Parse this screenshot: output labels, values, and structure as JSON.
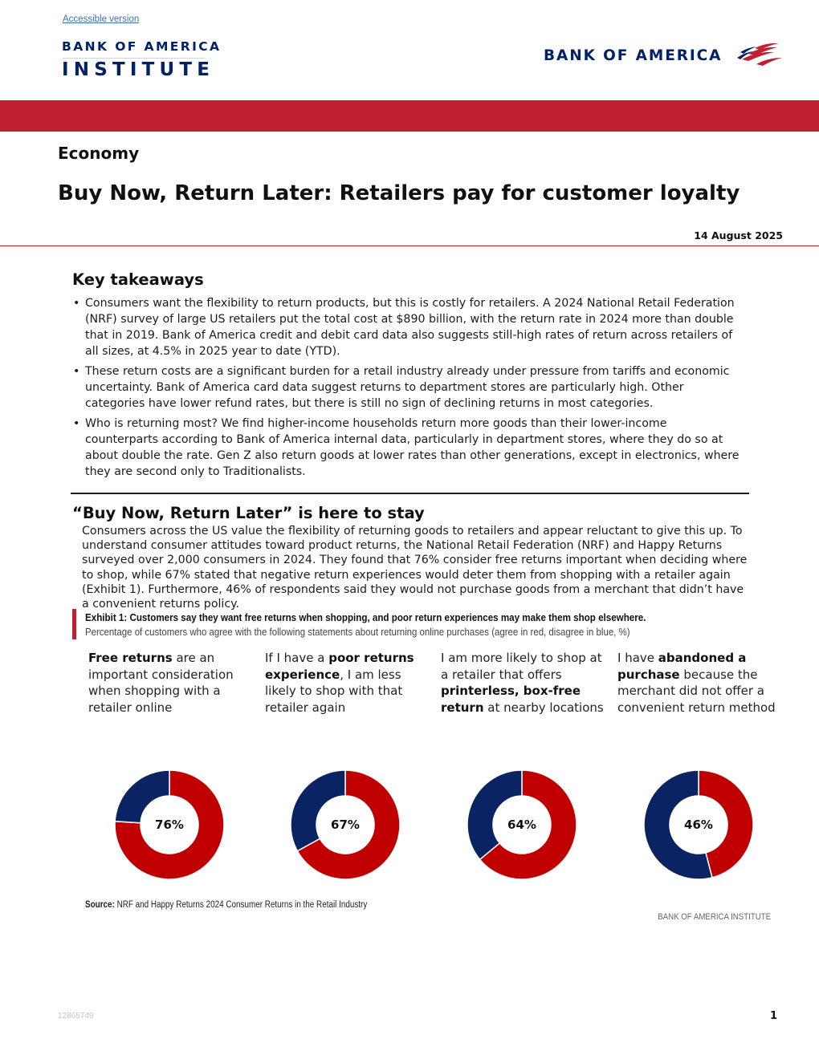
{
  "header": {
    "accessible_link": "Accessible version",
    "institute_line1": "BANK OF AMERICA",
    "institute_line2": "INSTITUTE",
    "logo_text": "BANK OF AMERICA",
    "brand_red": "#c0202f",
    "brand_navy": "#012169"
  },
  "article": {
    "section": "Economy",
    "title": "Buy Now, Return Later: Retailers pay for customer loyalty",
    "date": "14 August 2025"
  },
  "key_takeaways": {
    "heading": "Key takeaways",
    "items": [
      "Consumers want the flexibility to return products, but this is costly for retailers. A 2024 National Retail Federation (NRF) survey of large US retailers put the total cost at $890 billion, with the return rate in 2024 more than double that in 2019. Bank of America credit and debit card data also suggests still-high rates of return across retailers of all sizes, at 4.5% in 2025 year to date (YTD).",
      "These return costs are a significant burden for a retail industry already under pressure from tariffs and economic uncertainty. Bank of America card data suggest returns to department stores are particularly high. Other categories have lower refund rates, but there is still no sign of declining returns in most categories.",
      "Who is returning most? We find higher-income households return more goods than their lower-income counterparts according to Bank of America internal data, particularly in department stores, where they do so at about double the rate. Gen Z also return goods at lower rates than other generations, except in electronics, where they are second only to Traditionalists."
    ]
  },
  "section2": {
    "heading": "“Buy Now, Return Later” is here to stay",
    "body": "Consumers across the US value the flexibility of returning goods to retailers and appear reluctant to give this up. To understand consumer attitudes toward product returns, the National Retail Federation (NRF) and Happy Returns surveyed over 2,000 consumers in 2024. They found that 76% consider free returns important when deciding where to shop, while 67% stated that negative return experiences would deter them from shopping with a retailer again (Exhibit 1). Furthermore, 46% of respondents said they would not purchase goods from a merchant that didn’t have a convenient returns policy."
  },
  "exhibit": {
    "title": "Exhibit 1: Customers say they want free returns when shopping, and poor return experiences may make them shop elsewhere.",
    "subtitle": "Percentage of customers who agree with the following statements about returning online purchases (agree in red, disagree in blue, %)",
    "source_label": "Source:",
    "source_text": "NRF and Happy Returns 2024 Consumer Returns in the Retail Industry",
    "credit": "BANK OF AMERICA INSTITUTE"
  },
  "chart_data": {
    "type": "pie",
    "subtype": "donut",
    "series": [
      {
        "name": "agree",
        "color": "#c00000"
      },
      {
        "name": "disagree",
        "color": "#0a2463"
      }
    ],
    "charts": [
      {
        "statement": [
          {
            "text": "Free returns",
            "bold": true
          },
          {
            "text": " are an important consideration when shopping with a retailer online",
            "bold": false
          }
        ],
        "agree": 76,
        "disagree": 24,
        "label": "76%"
      },
      {
        "statement": [
          {
            "text": "If I have a ",
            "bold": false
          },
          {
            "text": "poor returns experience",
            "bold": true
          },
          {
            "text": ", I am less likely to shop with that retailer again",
            "bold": false
          }
        ],
        "agree": 67,
        "disagree": 33,
        "label": "67%"
      },
      {
        "statement": [
          {
            "text": "I am more likely to shop at a retailer that offers ",
            "bold": false
          },
          {
            "text": "printerless, box-free return",
            "bold": true
          },
          {
            "text": " at nearby locations",
            "bold": false
          }
        ],
        "agree": 64,
        "disagree": 36,
        "label": "64%"
      },
      {
        "statement": [
          {
            "text": "I have ",
            "bold": false
          },
          {
            "text": "abandoned a purchase",
            "bold": true
          },
          {
            "text": " because the merchant did not offer a convenient return method",
            "bold": false
          }
        ],
        "agree": 46,
        "disagree": 54,
        "label": "46%"
      }
    ]
  },
  "footer": {
    "doc_id": "12865749",
    "page_number": "1"
  }
}
